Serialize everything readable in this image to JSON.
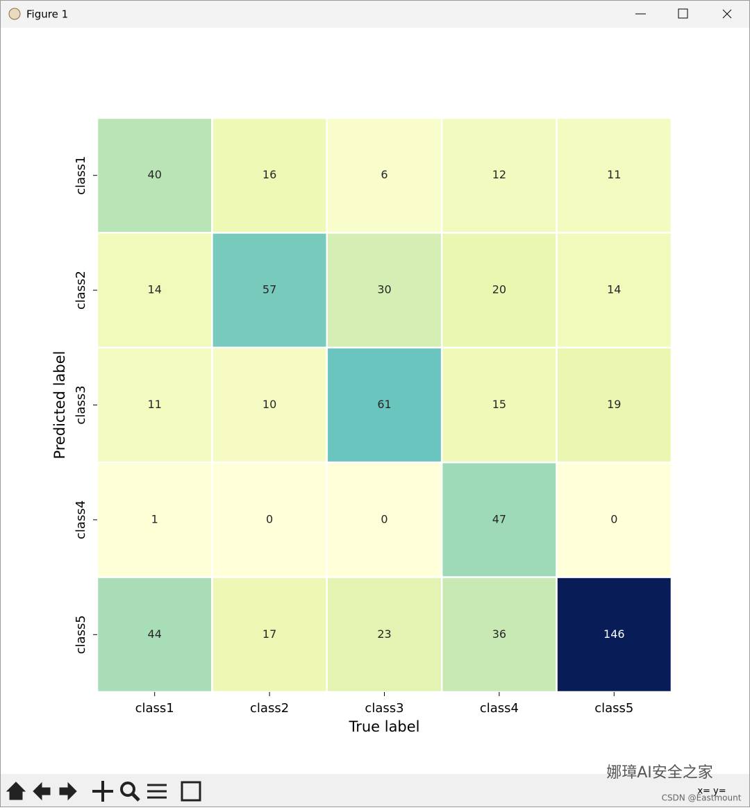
{
  "window": {
    "title": "Figure 1"
  },
  "chart_data": {
    "type": "heatmap",
    "x_label": "True label",
    "y_label": "Predicted label",
    "x_categories": [
      "class1",
      "class2",
      "class3",
      "class4",
      "class5"
    ],
    "y_categories": [
      "class1",
      "class2",
      "class3",
      "class4",
      "class5"
    ],
    "values": [
      [
        40,
        16,
        6,
        12,
        11
      ],
      [
        14,
        57,
        30,
        20,
        14
      ],
      [
        11,
        10,
        61,
        15,
        19
      ],
      [
        1,
        0,
        0,
        47,
        0
      ],
      [
        44,
        17,
        23,
        36,
        146
      ]
    ],
    "colormap": [
      "#ffffd9",
      "#edf8b1",
      "#c7e9b4",
      "#7fcdbb",
      "#41b6c4",
      "#1d91c0",
      "#225ea8",
      "#253494",
      "#081d58"
    ]
  },
  "toolbar": {
    "coords": "x= y="
  },
  "watermark": {
    "wechat": "娜璋AI安全之家",
    "csdn": "CSDN @Eastmount"
  }
}
